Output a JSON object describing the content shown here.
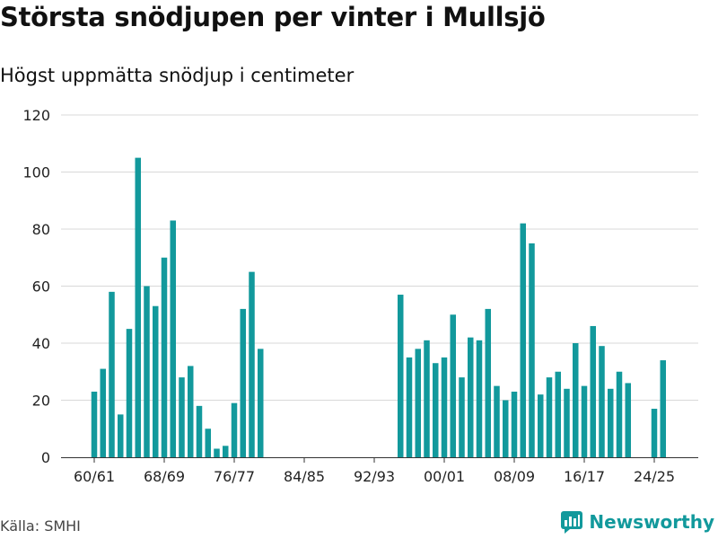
{
  "header": {
    "title": "Största snödjupen per vinter i Mullsjö",
    "subtitle": "Högst uppmätta snödjup i centimeter"
  },
  "footer": {
    "source": "Källa: SMHI",
    "brand": "Newsworthy"
  },
  "colors": {
    "bar": "#12999c",
    "grid": "#d9d9d9",
    "axis": "#333333",
    "brand": "#12999c"
  },
  "chart_data": {
    "type": "bar",
    "title": "Största snödjupen per vinter i Mullsjö",
    "subtitle": "Högst uppmätta snödjup i centimeter",
    "xlabel": "",
    "ylabel": "",
    "ylim": [
      0,
      120
    ],
    "yticks": [
      0,
      20,
      40,
      60,
      80,
      100,
      120
    ],
    "xtick_labels": [
      "60/61",
      "68/69",
      "76/77",
      "84/85",
      "92/93",
      "00/01",
      "08/09",
      "16/17",
      "24/25"
    ],
    "categories": [
      "60/61",
      "61/62",
      "62/63",
      "63/64",
      "64/65",
      "65/66",
      "66/67",
      "67/68",
      "68/69",
      "69/70",
      "70/71",
      "71/72",
      "72/73",
      "73/74",
      "74/75",
      "75/76",
      "76/77",
      "77/78",
      "78/79",
      "79/80",
      "80/81",
      "81/82",
      "82/83",
      "83/84",
      "84/85",
      "85/86",
      "86/87",
      "87/88",
      "88/89",
      "89/90",
      "90/91",
      "91/92",
      "92/93",
      "93/94",
      "94/95",
      "95/96",
      "96/97",
      "97/98",
      "98/99",
      "99/00",
      "00/01",
      "01/02",
      "02/03",
      "03/04",
      "04/05",
      "05/06",
      "06/07",
      "07/08",
      "08/09",
      "09/10",
      "10/11",
      "11/12",
      "12/13",
      "13/14",
      "14/15",
      "15/16",
      "16/17",
      "17/18",
      "18/19",
      "19/20",
      "20/21",
      "21/22",
      "22/23",
      "23/24",
      "24/25",
      "25/26"
    ],
    "values": [
      23,
      31,
      58,
      15,
      45,
      105,
      60,
      53,
      70,
      83,
      28,
      32,
      18,
      10,
      3,
      4,
      19,
      52,
      65,
      38,
      null,
      null,
      null,
      null,
      null,
      null,
      null,
      null,
      null,
      null,
      null,
      null,
      null,
      null,
      null,
      57,
      35,
      38,
      41,
      33,
      35,
      50,
      28,
      42,
      41,
      52,
      25,
      20,
      23,
      82,
      75,
      22,
      28,
      30,
      24,
      40,
      25,
      46,
      39,
      24,
      30,
      26,
      null,
      null,
      17,
      34
    ]
  }
}
